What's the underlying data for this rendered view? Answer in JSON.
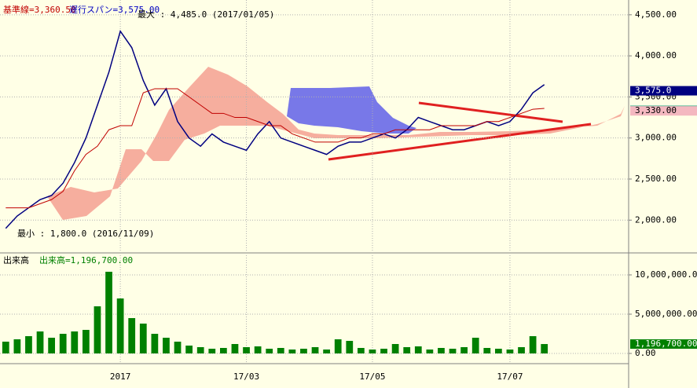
{
  "chart_data": [
    {
      "type": "line",
      "series": [
        {
          "color": "#000080",
          "values": [
            1900,
            2050,
            2150,
            2250,
            2300,
            2450,
            2700,
            3000,
            3400,
            3800,
            4300,
            4100,
            3700,
            3400,
            3600,
            3200,
            3000,
            2900,
            3050,
            2950,
            2900,
            2850,
            3050,
            3200,
            3000,
            2950,
            2900,
            2850,
            2800,
            2900,
            2950,
            2950,
            3000,
            3050,
            3000,
            3100,
            3250,
            3200,
            3150,
            3100,
            3100,
            3150,
            3200,
            3150,
            3200,
            3350,
            3550,
            3650
          ]
        },
        {
          "color": "#c00000",
          "values": [
            2150,
            2150,
            2150,
            2200,
            2250,
            2350,
            2600,
            2800,
            2900,
            3100,
            3150,
            3150,
            3550,
            3600,
            3600,
            3600,
            3500,
            3400,
            3300,
            3300,
            3250,
            3250,
            3200,
            3150,
            3150,
            3050,
            3000,
            2950,
            2950,
            2950,
            3000,
            3000,
            3050,
            3050,
            3100,
            3100,
            3100,
            3100,
            3150,
            3150,
            3150,
            3150,
            3200,
            3200,
            3250,
            3300,
            3350,
            3360
          ]
        }
      ],
      "ylim": [
        1620,
        4680
      ],
      "yticks": [
        {
          "value": 2000,
          "label": "2,000.00"
        },
        {
          "value": 2500,
          "label": "2,500.00"
        },
        {
          "value": 3000,
          "label": "3,000.00"
        },
        {
          "value": 3500,
          "label": "3,500.00"
        },
        {
          "value": 4000,
          "label": "4,000.00"
        },
        {
          "value": 4500,
          "label": "4,500.00"
        }
      ],
      "grid": true,
      "annotations": [
        {
          "text": "基準線=3,360.50",
          "color": "#c00000"
        },
        {
          "text": "遅行スパン=3,575.00",
          "color": "#0000c0"
        },
        {
          "text": "最大 : 4,485.0 (2017/01/05)",
          "color": "#000000"
        },
        {
          "text": "最小 : 1,800.0 (2016/11/09)",
          "color": "#000000"
        }
      ],
      "price_tags": [
        {
          "value": 3575,
          "label": "3,575.0",
          "color": "#000080"
        },
        {
          "value": 3336.5,
          "label": "3,336.50",
          "color": "#20a080"
        },
        {
          "value": 3330,
          "label": "3,330.00",
          "color": "#f4b8c0"
        }
      ]
    },
    {
      "type": "bar",
      "title": "出来高",
      "categories": [
        null,
        null,
        null,
        null,
        null,
        null,
        null,
        null,
        null,
        null,
        "2017",
        null,
        null,
        null,
        null,
        null,
        null,
        null,
        null,
        null,
        null,
        "17/03",
        null,
        null,
        null,
        null,
        null,
        null,
        null,
        null,
        null,
        null,
        "17/05",
        null,
        null,
        null,
        null,
        null,
        null,
        null,
        null,
        null,
        null,
        null,
        "17/07",
        null,
        null,
        null
      ],
      "values": [
        1500000,
        1800000,
        2200000,
        2800000,
        2000000,
        2500000,
        2800000,
        3000000,
        6000000,
        10400000,
        7000000,
        4500000,
        3800000,
        2500000,
        2000000,
        1500000,
        1000000,
        800000,
        600000,
        700000,
        1200000,
        800000,
        900000,
        600000,
        700000,
        500000,
        600000,
        800000,
        500000,
        1800000,
        1600000,
        700000,
        500000,
        600000,
        1200000,
        800000,
        900000,
        500000,
        700000,
        600000,
        800000,
        2000000,
        700000,
        600000,
        500000,
        800000,
        2200000,
        1196700
      ],
      "color": "#008000",
      "ylim": [
        -1300000,
        12500000
      ],
      "yticks": [
        {
          "value": 0,
          "label": "0.00"
        },
        {
          "value": 5000000,
          "label": "5,000,000.00"
        },
        {
          "value": 10000000,
          "label": "10,000,000.00"
        }
      ],
      "grid": true,
      "annotation": {
        "text": "出来高=1,196,700.00",
        "color": "#008000"
      },
      "price_tag": {
        "value": 1196700,
        "label": "1,196,700.00",
        "color": "#008000"
      }
    }
  ]
}
